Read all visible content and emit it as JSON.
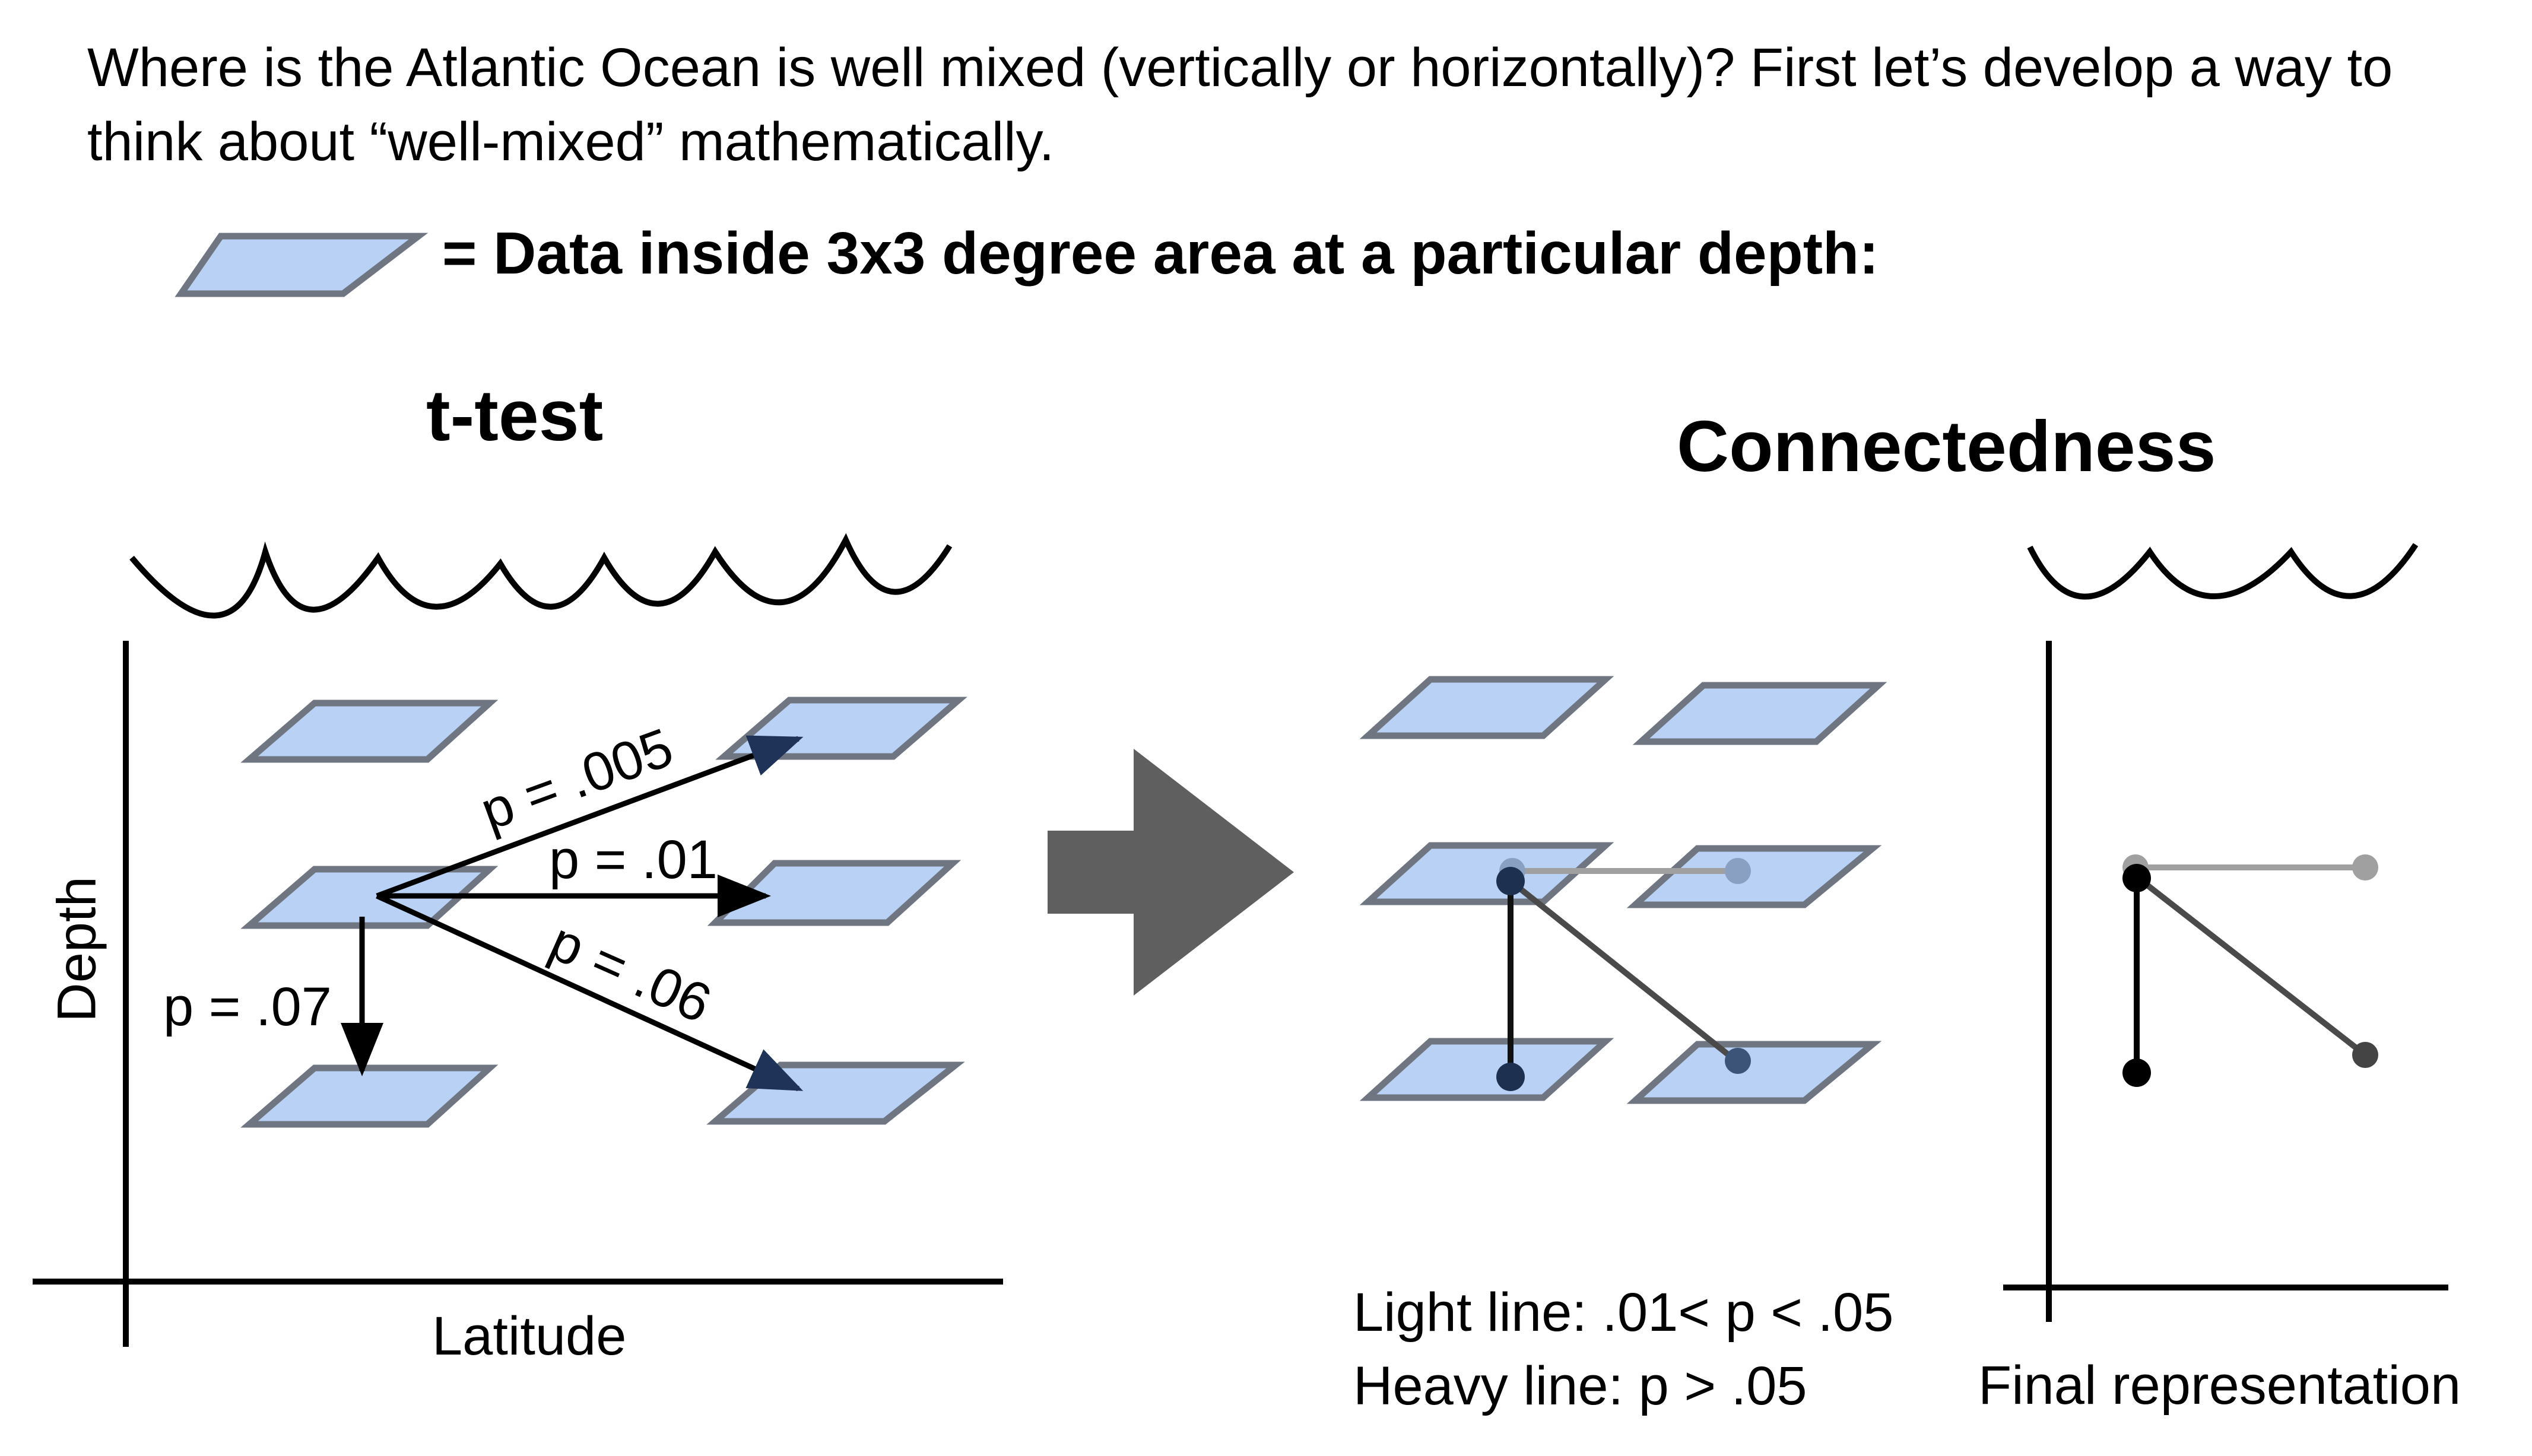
{
  "intro": "Where is the Atlantic Ocean is well mixed (vertically or horizontally)? First let’s develop a way to think about “well-mixed” mathematically.",
  "legend": {
    "label": "= Data inside 3x3 degree area at a particular depth:"
  },
  "ttest": {
    "title": "t-test",
    "xlabel": "Latitude",
    "ylabel": "Depth",
    "edges": [
      {
        "from": "center-left",
        "to": "top-right",
        "p": "p = .005"
      },
      {
        "from": "center-left",
        "to": "middle-right",
        "p": "p = .01"
      },
      {
        "from": "center-left",
        "to": "bottom-right",
        "p": "p = .06"
      },
      {
        "from": "center-left",
        "to": "bottom-left",
        "p": "p = .07"
      }
    ]
  },
  "connectedness": {
    "title": "Connectedness",
    "key": {
      "light": "Light line: .01< p < .05",
      "heavy": "Heavy line: p > .05"
    },
    "final_label": "Final representation"
  },
  "colors": {
    "tile_fill": "#b8d1f5",
    "tile_stroke": "#6f7682",
    "arrow": "#5f5f5f",
    "light_line": "#a0a0a0",
    "mid_line": "#4a4a4a",
    "heavy_line": "#111111"
  }
}
